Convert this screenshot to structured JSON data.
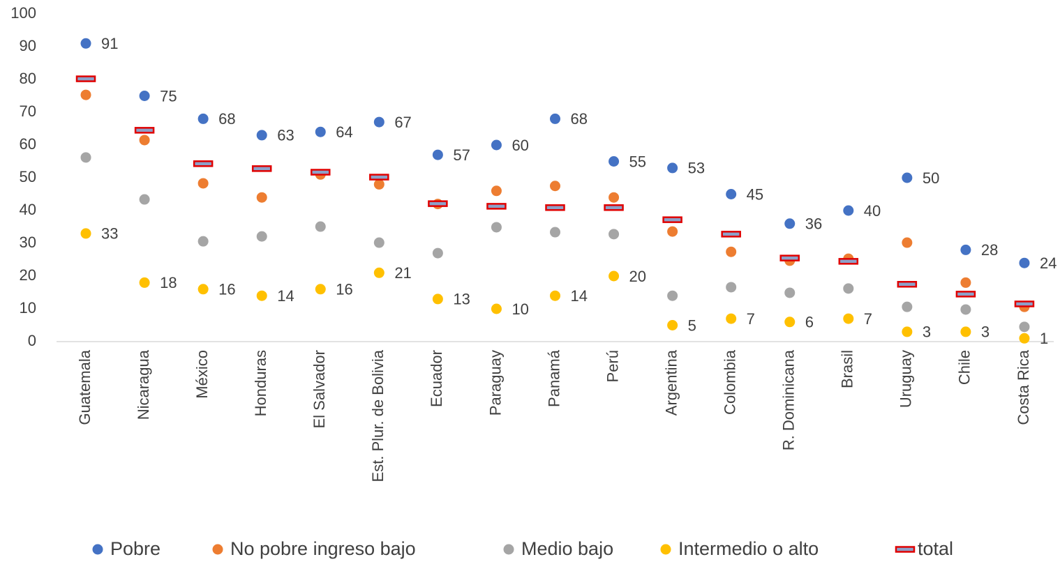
{
  "chart_data": {
    "type": "dot",
    "categories": [
      "Guatemala",
      "Nicaragua",
      "México",
      "Honduras",
      "El Salvador",
      "Est. Plur. de Bolivia",
      "Ecuador",
      "Paraguay",
      "Panamá",
      "Perú",
      "Argentina",
      "Colombia",
      "R. Dominicana",
      "Brasil",
      "Uruguay",
      "Chile",
      "Costa Rica"
    ],
    "series": [
      {
        "name": "Pobre",
        "color": "#4472c4",
        "marker": "circle",
        "data_labels": true,
        "values": [
          91,
          75,
          68,
          63,
          64,
          67,
          57,
          60,
          68,
          55,
          53,
          45,
          36,
          40,
          50,
          28,
          24
        ]
      },
      {
        "name": "No pobre ingreso bajo",
        "color": "#ed7d31",
        "marker": "circle",
        "data_labels": false,
        "values": [
          75.3,
          61.5,
          48.3,
          44,
          51,
          48,
          42,
          46,
          47.5,
          44,
          33.6,
          27.4,
          24.7,
          25.3,
          30.2,
          18,
          10.6
        ]
      },
      {
        "name": "Medio bajo",
        "color": "#a5a5a5",
        "marker": "circle",
        "data_labels": false,
        "values": [
          56.2,
          43.4,
          30.6,
          32.1,
          35.1,
          30.2,
          27,
          34.9,
          33.4,
          32.8,
          14,
          16.6,
          14.9,
          16.2,
          10.6,
          9.8,
          4.5
        ]
      },
      {
        "name": "Intermedio o alto",
        "color": "#ffc000",
        "marker": "circle",
        "data_labels": true,
        "values": [
          33,
          18,
          16,
          14,
          16,
          21,
          13,
          10,
          14,
          20,
          5,
          7,
          6,
          7,
          3,
          3,
          1
        ]
      },
      {
        "name": "total",
        "color": "#e00000",
        "marker": "dash",
        "data_labels": false,
        "values": [
          80.2,
          64.5,
          54.3,
          52.8,
          51.7,
          50.2,
          42.1,
          41.3,
          40.9,
          40.9,
          37.2,
          32.8,
          25.5,
          24.5,
          17.5,
          14.5,
          11.5
        ]
      }
    ],
    "ylim": [
      0,
      100
    ],
    "yticks": [
      0,
      10,
      20,
      30,
      40,
      50,
      60,
      70,
      80,
      90,
      100
    ],
    "grid": false,
    "legend": "bottom"
  }
}
